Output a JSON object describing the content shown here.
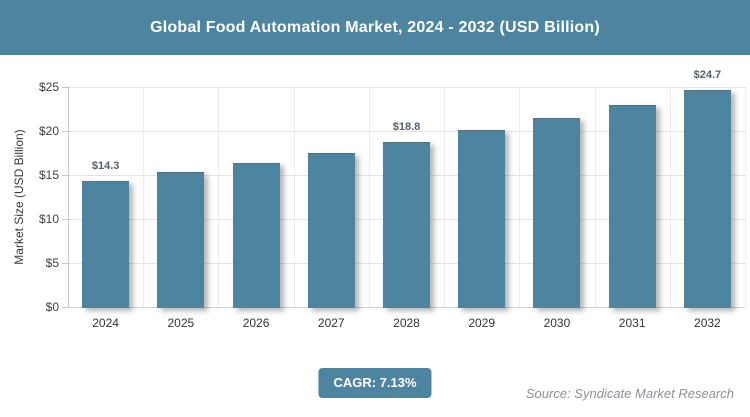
{
  "header": {
    "title": "Global Food Automation Market, 2024 - 2032 (USD Billion)"
  },
  "colors": {
    "accent_teal": "#4d85a1",
    "title_text": "#ffffff",
    "data_label": "#53616e",
    "source_text": "#8b9197"
  },
  "chart_data": {
    "type": "bar",
    "title": "Global Food Automation Market, 2024 - 2032 (USD Billion)",
    "categories": [
      "2024",
      "2025",
      "2026",
      "2027",
      "2028",
      "2029",
      "2030",
      "2031",
      "2032"
    ],
    "values": [
      14.3,
      15.3,
      16.4,
      17.5,
      18.8,
      20.1,
      21.5,
      23.0,
      24.7
    ],
    "point_labels": [
      "$14.3",
      null,
      null,
      null,
      "$18.8",
      null,
      null,
      null,
      "$24.7"
    ],
    "xlabel": "",
    "ylabel": "Market Size (USD Billion)",
    "ylim": [
      0,
      25
    ],
    "yticks": [
      0,
      5,
      10,
      15,
      20,
      25
    ],
    "ytick_labels": [
      "$0",
      "$5",
      "$10",
      "$15",
      "$20",
      "$25"
    ],
    "grid": true,
    "legend": false,
    "bar_color": "#4d85a1"
  },
  "footer": {
    "cagr_label": "CAGR: 7.13%",
    "source": "Source: Syndicate Market Research"
  }
}
